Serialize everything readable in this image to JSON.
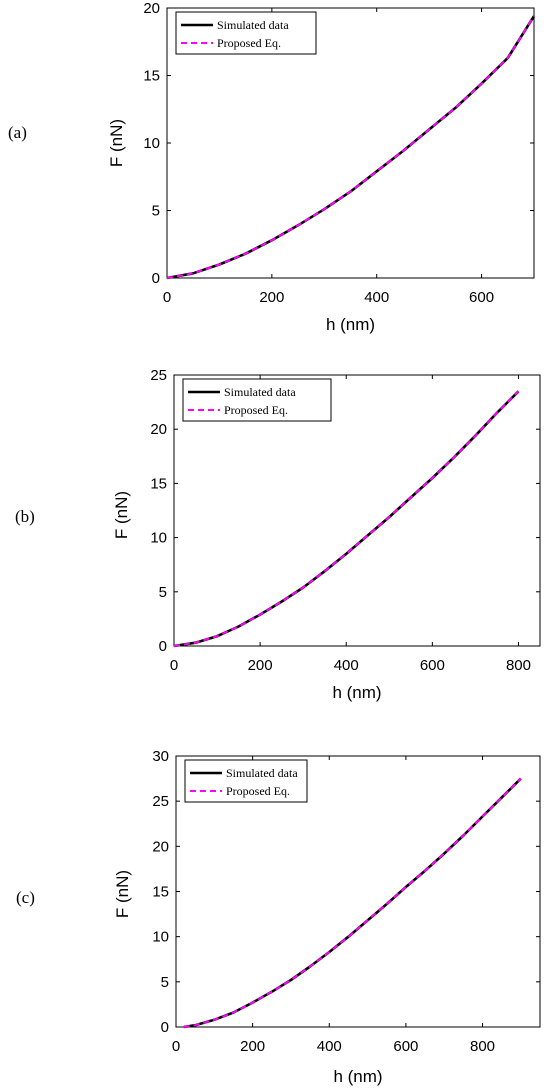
{
  "colors": {
    "simulated": "#000000",
    "proposed": "#ff00ff"
  },
  "chart_data": [
    {
      "type": "line",
      "panel_label": "(a)",
      "xlabel": "h (nm)",
      "ylabel": "F (nN)",
      "xlim": [
        0,
        700
      ],
      "ylim": [
        0,
        20
      ],
      "xticks": [
        0,
        200,
        400,
        600
      ],
      "yticks": [
        0,
        5,
        10,
        15,
        20
      ],
      "legend": "top-left",
      "series": [
        {
          "name": "Simulated data",
          "style": "solid",
          "x": [
            0,
            50,
            100,
            150,
            200,
            250,
            300,
            350,
            400,
            450,
            500,
            550,
            600,
            650,
            700
          ],
          "y": [
            0,
            0.35,
            1.0,
            1.8,
            2.8,
            3.9,
            5.1,
            6.4,
            7.9,
            9.4,
            11.0,
            12.6,
            14.4,
            16.3,
            19.4
          ]
        },
        {
          "name": "Proposed Eq.",
          "style": "dashed",
          "x": [
            0,
            50,
            100,
            150,
            200,
            250,
            300,
            350,
            400,
            450,
            500,
            550,
            600,
            650,
            700
          ],
          "y": [
            0,
            0.35,
            1.0,
            1.8,
            2.8,
            3.9,
            5.1,
            6.4,
            7.9,
            9.4,
            11.0,
            12.6,
            14.4,
            16.3,
            19.4
          ]
        }
      ]
    },
    {
      "type": "line",
      "panel_label": "(b)",
      "xlabel": "h (nm)",
      "ylabel": "F (nN)",
      "xlim": [
        0,
        850
      ],
      "ylim": [
        0,
        25
      ],
      "xticks": [
        0,
        200,
        400,
        600,
        800
      ],
      "yticks": [
        0,
        5,
        10,
        15,
        20,
        25
      ],
      "legend": "top-left",
      "series": [
        {
          "name": "Simulated data",
          "style": "solid",
          "x": [
            0,
            50,
            100,
            150,
            200,
            250,
            300,
            350,
            400,
            450,
            500,
            550,
            600,
            650,
            700,
            750,
            800
          ],
          "y": [
            0,
            0.3,
            0.9,
            1.8,
            2.9,
            4.1,
            5.4,
            6.9,
            8.5,
            10.2,
            11.9,
            13.7,
            15.5,
            17.4,
            19.4,
            21.5,
            23.5
          ]
        },
        {
          "name": "Proposed Eq.",
          "style": "dashed",
          "x": [
            0,
            50,
            100,
            150,
            200,
            250,
            300,
            350,
            400,
            450,
            500,
            550,
            600,
            650,
            700,
            750,
            800
          ],
          "y": [
            0,
            0.3,
            0.9,
            1.8,
            2.9,
            4.1,
            5.4,
            6.9,
            8.5,
            10.2,
            11.9,
            13.7,
            15.5,
            17.4,
            19.4,
            21.5,
            23.5
          ]
        }
      ]
    },
    {
      "type": "line",
      "panel_label": "(c)",
      "xlabel": "h (nm)",
      "ylabel": "F (nN)",
      "xlim": [
        0,
        950
      ],
      "ylim": [
        0,
        30
      ],
      "xticks": [
        0,
        200,
        400,
        600,
        800
      ],
      "yticks": [
        0,
        5,
        10,
        15,
        20,
        25,
        30
      ],
      "legend": "top-left",
      "series": [
        {
          "name": "Simulated data",
          "style": "solid",
          "x": [
            20,
            50,
            100,
            150,
            200,
            250,
            300,
            350,
            400,
            450,
            500,
            550,
            600,
            650,
            700,
            750,
            800,
            850,
            900
          ],
          "y": [
            0,
            0.2,
            0.8,
            1.6,
            2.7,
            3.9,
            5.2,
            6.7,
            8.3,
            10.0,
            11.8,
            13.6,
            15.5,
            17.3,
            19.2,
            21.2,
            23.3,
            25.4,
            27.5
          ]
        },
        {
          "name": "Proposed Eq.",
          "style": "dashed",
          "x": [
            20,
            50,
            100,
            150,
            200,
            250,
            300,
            350,
            400,
            450,
            500,
            550,
            600,
            650,
            700,
            750,
            800,
            850,
            900
          ],
          "y": [
            0,
            0.2,
            0.8,
            1.6,
            2.7,
            3.9,
            5.2,
            6.7,
            8.3,
            10.0,
            11.8,
            13.6,
            15.5,
            17.3,
            19.2,
            21.2,
            23.3,
            25.4,
            27.5
          ]
        }
      ]
    }
  ]
}
